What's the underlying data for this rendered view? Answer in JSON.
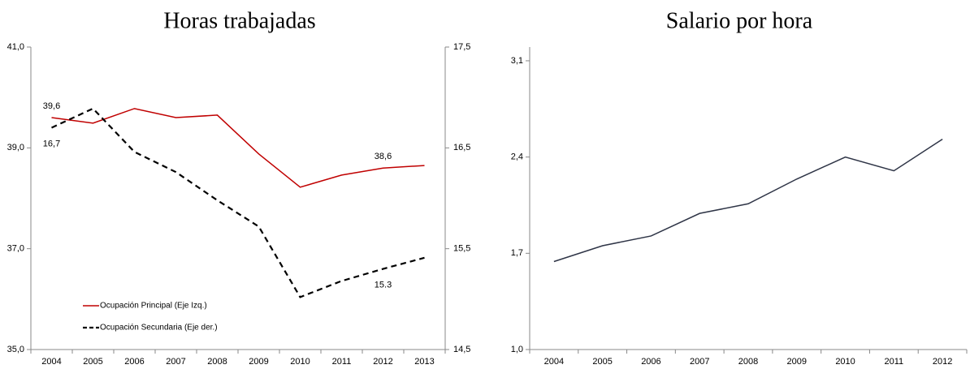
{
  "chart_data": [
    {
      "type": "line",
      "title": "Horas trabajadas",
      "categories": [
        "2004",
        "2005",
        "2006",
        "2007",
        "2008",
        "2009",
        "2010",
        "2011",
        "2012",
        "2013"
      ],
      "ylim": [
        35,
        41
      ],
      "yticks": [
        {
          "value": 35,
          "label": "35,0"
        },
        {
          "value": 37,
          "label": "37,0"
        },
        {
          "value": 39,
          "label": "39,0"
        },
        {
          "value": 41,
          "label": "41,0"
        }
      ],
      "y2lim": [
        14.5,
        17.5
      ],
      "y2ticks": [
        {
          "value": 14.5,
          "label": "14,5"
        },
        {
          "value": 15.5,
          "label": "15,5"
        },
        {
          "value": 16.5,
          "label": "16,5"
        },
        {
          "value": 17.5,
          "label": "17,5"
        }
      ],
      "legend": "lower left",
      "series": [
        {
          "name": "Ocupación Principal (Eje Izq.)",
          "color": "#c00000",
          "line_style": "solid",
          "values": [
            39.6,
            39.49,
            39.78,
            39.6,
            39.65,
            38.88,
            38.22,
            38.46,
            38.6,
            38.65
          ],
          "value_labels": [
            "39,6",
            null,
            null,
            null,
            null,
            null,
            null,
            null,
            "38,6",
            null
          ]
        },
        {
          "name": "Ocupación Secundaria (Eje der.)",
          "color": "#000000",
          "line_style": "dashed",
          "axis": "y2",
          "values": [
            16.7,
            16.89,
            16.46,
            16.26,
            15.98,
            15.72,
            15.02,
            15.18,
            15.3,
            15.41
          ],
          "value_labels": [
            "16,7",
            null,
            null,
            null,
            null,
            null,
            null,
            null,
            "15.3",
            null
          ]
        }
      ]
    },
    {
      "type": "line",
      "title": "Salario por hora",
      "categories": [
        "2004",
        "2005",
        "2006",
        "2007",
        "2008",
        "2009",
        "2010",
        "2011",
        "2012"
      ],
      "ylim": [
        1.0,
        3.2
      ],
      "yticks": [
        {
          "value": 1.0,
          "label": "1,0"
        },
        {
          "value": 1.7,
          "label": "1,7"
        },
        {
          "value": 2.4,
          "label": "2,4"
        },
        {
          "value": 3.1,
          "label": "3,1"
        }
      ],
      "series": [
        {
          "color": "#2e3446",
          "line_style": "solid",
          "values": [
            1.64,
            1.755,
            1.826,
            1.99,
            2.06,
            2.24,
            2.4,
            2.3,
            2.53
          ]
        }
      ]
    }
  ]
}
